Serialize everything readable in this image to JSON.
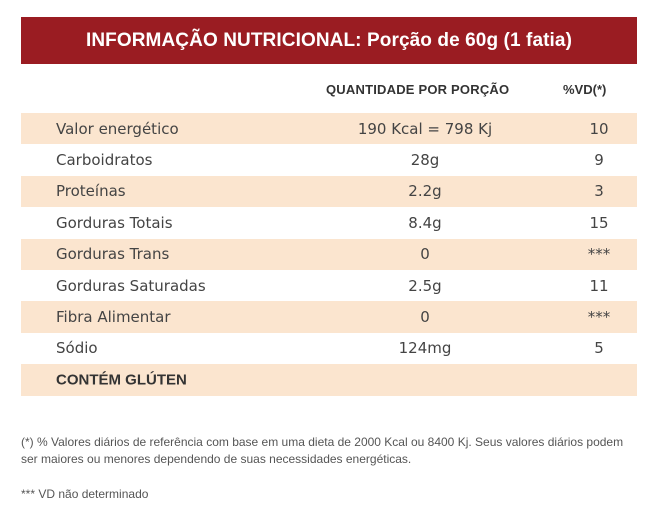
{
  "header": {
    "title": "INFORMAÇÃO NUTRICIONAL: Porção de 60g (1 fatia)"
  },
  "columns": {
    "quantity": "QUANTIDADE POR PORÇÃO",
    "vd": "%VD(*)"
  },
  "rows": [
    {
      "name": "Valor energético",
      "quantity": "190 Kcal = 798 Kj",
      "vd": "10"
    },
    {
      "name": "Carboidratos",
      "quantity": "28g",
      "vd": "9"
    },
    {
      "name": "Proteínas",
      "quantity": "2.2g",
      "vd": "3"
    },
    {
      "name": "Gorduras Totais",
      "quantity": "8.4g",
      "vd": "15"
    },
    {
      "name": "Gorduras Trans",
      "quantity": "0",
      "vd": "***"
    },
    {
      "name": "Gorduras Saturadas",
      "quantity": "2.5g",
      "vd": "11"
    },
    {
      "name": "Fibra Alimentar",
      "quantity": "0",
      "vd": "***"
    },
    {
      "name": "Sódio",
      "quantity": "124mg",
      "vd": "5"
    }
  ],
  "allergen": "CONTÉM GLÚTEN",
  "colors": {
    "header_bg": "#9a1c22",
    "row_shade": "#fbe5cf"
  },
  "footnotes": {
    "reference": "(*) % Valores diários de referência com base em uma dieta de 2000 Kcal ou 8400 Kj. Seus valores diários podem ser maiores ou menores dependendo de suas necessidades energéticas.",
    "not_determined": "*** VD não determinado"
  }
}
